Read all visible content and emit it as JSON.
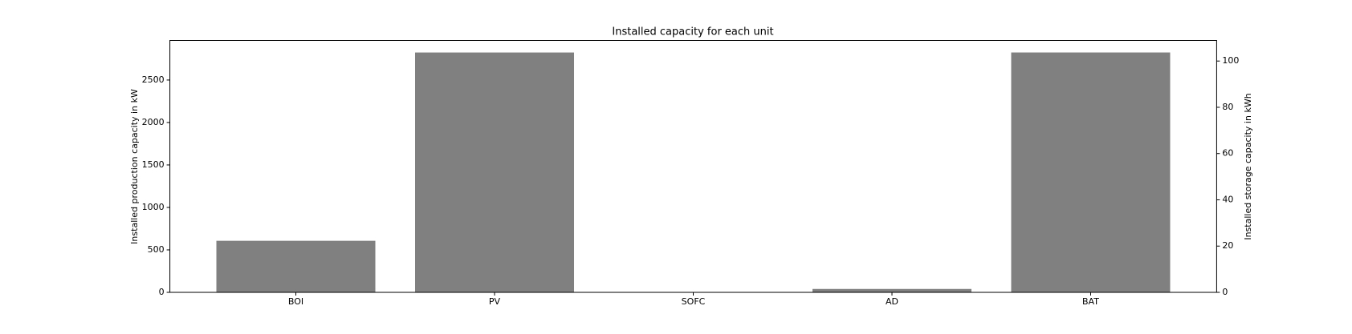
{
  "chart_data": {
    "type": "bar",
    "title": "Installed capacity for each unit",
    "categories": [
      "BOI",
      "PV",
      "SOFC",
      "AD",
      "BAT"
    ],
    "ylabel": "Installed production capacity in kW",
    "y2label": "Installed storage capacity in kWh",
    "series": [
      {
        "color": "#808080",
        "values": [
          607,
          2824,
          0,
          40,
          null
        ]
      },
      {
        "color": "#808080",
        "axis": "y2",
        "values": [
          null,
          null,
          null,
          null,
          103.7
        ]
      }
    ],
    "ylim": [
      0,
      2966
    ],
    "yticks": [
      0,
      500,
      1000,
      1500,
      2000,
      2500
    ],
    "y2lim": [
      0,
      108.9
    ],
    "y2ticks": [
      0,
      20,
      40,
      60,
      80,
      100
    ]
  }
}
